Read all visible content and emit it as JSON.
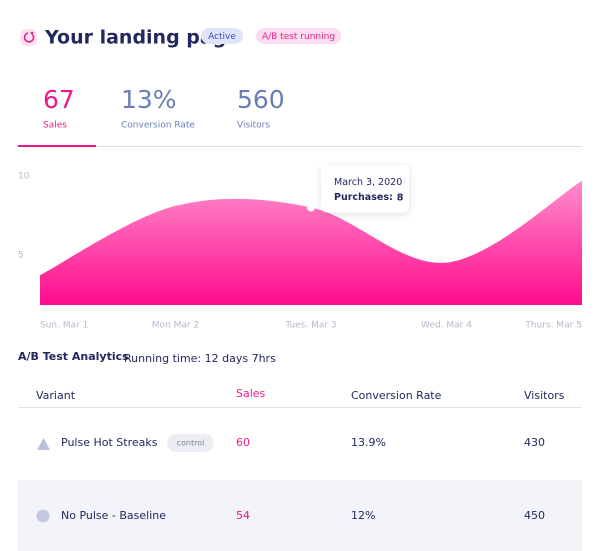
{
  "header": {
    "title": "Your landing page",
    "badges": [
      "Active",
      "A/B test running"
    ]
  },
  "stats": [
    {
      "value": "67",
      "label": "Sales"
    },
    {
      "value": "13%",
      "label": "Conversion Rate"
    },
    {
      "value": "560",
      "label": "Visitors"
    }
  ],
  "chart_data": {
    "type": "area",
    "categories": [
      "Sun. Mar 1",
      "Mon Mar 2",
      "Tues. Mar 3",
      "Wed. Mar 4",
      "Thurs. Mar 5"
    ],
    "values": [
      3.7,
      8.1,
      8,
      4.5,
      9.7
    ],
    "ylim": [
      2,
      10
    ],
    "yticks": [
      5,
      10
    ],
    "color": "#ff1493",
    "tooltip": {
      "title": "March 3, 2020",
      "label": "Purchases:"
    }
  },
  "analytics": {
    "title": "A/B Test Analytics",
    "running_time": "Running time: 12 days 7hrs"
  },
  "table": {
    "columns": [
      "Variant",
      "Sales",
      "Conversion Rate",
      "Visitors"
    ],
    "rows": [
      {
        "variant": "Pulse Hot Streaks",
        "tag": "control",
        "sales": "60",
        "conversion": "13.9%",
        "visitors": "430"
      },
      {
        "variant": "No Pulse - Baseline",
        "sales": "54",
        "conversion": "12%",
        "visitors": "450"
      }
    ]
  }
}
